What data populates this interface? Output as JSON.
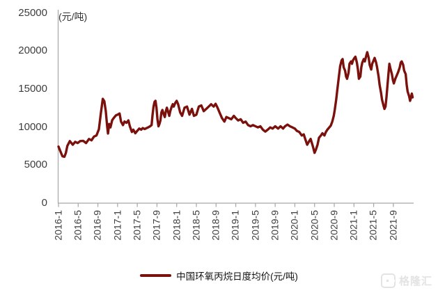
{
  "chart": {
    "unit_label": "(元/吨)"
  },
  "legend": {
    "label": "中国环氧丙烷日度均价(元/吨)"
  },
  "watermark": {
    "brand": "格隆汇"
  },
  "colors": {
    "series": "#7B110D",
    "axis": "#A6A6A6",
    "tick_text": "#3d3d3d"
  },
  "chart_data": {
    "type": "line",
    "title": "",
    "ylabel": "(元/吨)",
    "ylim": [
      0,
      25000
    ],
    "grid": false,
    "legend_position": "bottom",
    "y_tick_labels": [
      "25000",
      "20000",
      "15000",
      "10000",
      "5000",
      "0"
    ],
    "y_tick_values": [
      25000,
      20000,
      15000,
      10000,
      5000,
      0
    ],
    "x_tick_labels": [
      "2016-1",
      "2016-5",
      "2016-9",
      "2017-1",
      "2017-5",
      "2017-9",
      "2018-1",
      "2018-5",
      "2018-9",
      "2019-1",
      "2019-5",
      "2019-9",
      "2020-1",
      "2020-5",
      "2020-9",
      "2021-1",
      "2021-5",
      "2021-9"
    ],
    "x_unit": "months since 2016-01 (0 = 2016-01)",
    "series": [
      {
        "name": "中国环氧丙烷日度均价(元/吨)",
        "color": "#7B110D",
        "points": [
          [
            0,
            7430
          ],
          [
            0.4,
            6800
          ],
          [
            0.8,
            6160
          ],
          [
            1.2,
            6100
          ],
          [
            1.5,
            6600
          ],
          [
            1.8,
            7520
          ],
          [
            2.3,
            8150
          ],
          [
            2.9,
            7680
          ],
          [
            3.4,
            8050
          ],
          [
            3.9,
            7900
          ],
          [
            4.4,
            8150
          ],
          [
            5,
            8190
          ],
          [
            5.6,
            7900
          ],
          [
            6.2,
            8440
          ],
          [
            6.7,
            8250
          ],
          [
            7.2,
            8740
          ],
          [
            7.7,
            8890
          ],
          [
            8.2,
            9700
          ],
          [
            8.6,
            11780
          ],
          [
            9,
            13700
          ],
          [
            9.3,
            13400
          ],
          [
            9.6,
            12100
          ],
          [
            9.9,
            10000
          ],
          [
            10.05,
            9150
          ],
          [
            10.3,
            10400
          ],
          [
            10.55,
            9950
          ],
          [
            10.9,
            10900
          ],
          [
            11.3,
            11250
          ],
          [
            11.7,
            11550
          ],
          [
            12,
            11630
          ],
          [
            12.4,
            11780
          ],
          [
            12.7,
            10720
          ],
          [
            13.1,
            10260
          ],
          [
            13.4,
            10720
          ],
          [
            13.8,
            10560
          ],
          [
            14.2,
            10870
          ],
          [
            14.5,
            10100
          ],
          [
            14.9,
            9350
          ],
          [
            15.2,
            9650
          ],
          [
            15.6,
            9190
          ],
          [
            16,
            9500
          ],
          [
            16.4,
            9800
          ],
          [
            16.8,
            9650
          ],
          [
            17.1,
            9860
          ],
          [
            17.5,
            9740
          ],
          [
            17.9,
            9860
          ],
          [
            18.2,
            9950
          ],
          [
            18.6,
            10100
          ],
          [
            18.9,
            10260
          ],
          [
            19.1,
            11630
          ],
          [
            19.3,
            12690
          ],
          [
            19.5,
            13300
          ],
          [
            19.7,
            13450
          ],
          [
            19.9,
            12540
          ],
          [
            20.1,
            11020
          ],
          [
            20.3,
            10100
          ],
          [
            20.5,
            10410
          ],
          [
            20.7,
            10870
          ],
          [
            20.9,
            11930
          ],
          [
            21.1,
            12240
          ],
          [
            21.4,
            11630
          ],
          [
            21.6,
            11320
          ],
          [
            21.8,
            12080
          ],
          [
            22,
            12540
          ],
          [
            22.3,
            11930
          ],
          [
            22.5,
            11470
          ],
          [
            22.7,
            12080
          ],
          [
            23,
            12690
          ],
          [
            23.2,
            13000
          ],
          [
            23.4,
            12690
          ],
          [
            23.7,
            13150
          ],
          [
            24,
            13450
          ],
          [
            24.3,
            13000
          ],
          [
            24.7,
            11930
          ],
          [
            25.1,
            11470
          ],
          [
            25.6,
            12540
          ],
          [
            26.1,
            12690
          ],
          [
            26.6,
            11630
          ],
          [
            27.1,
            12390
          ],
          [
            27.5,
            11470
          ],
          [
            28,
            11630
          ],
          [
            28.5,
            12690
          ],
          [
            29,
            12840
          ],
          [
            29.5,
            12080
          ],
          [
            30,
            12390
          ],
          [
            30.5,
            12690
          ],
          [
            31,
            13000
          ],
          [
            31.5,
            12690
          ],
          [
            31.9,
            13050
          ],
          [
            32.3,
            12540
          ],
          [
            32.7,
            11930
          ],
          [
            33.2,
            11170
          ],
          [
            33.7,
            10720
          ],
          [
            34.1,
            11320
          ],
          [
            34.6,
            11170
          ],
          [
            35.1,
            11020
          ],
          [
            35.6,
            11470
          ],
          [
            36,
            11170
          ],
          [
            36.5,
            10870
          ],
          [
            37,
            11020
          ],
          [
            37.5,
            10560
          ],
          [
            38,
            10720
          ],
          [
            38.5,
            10260
          ],
          [
            39,
            10100
          ],
          [
            39.5,
            10260
          ],
          [
            40,
            10100
          ],
          [
            40.5,
            9950
          ],
          [
            41,
            10100
          ],
          [
            41.5,
            9650
          ],
          [
            42,
            9410
          ],
          [
            42.5,
            9650
          ],
          [
            43,
            9950
          ],
          [
            43.5,
            9800
          ],
          [
            44,
            10100
          ],
          [
            44.6,
            9800
          ],
          [
            45.1,
            10100
          ],
          [
            45.6,
            9800
          ],
          [
            46,
            10100
          ],
          [
            46.5,
            10320
          ],
          [
            47,
            10100
          ],
          [
            47.5,
            9950
          ],
          [
            48,
            9800
          ],
          [
            48.4,
            9500
          ],
          [
            48.9,
            9350
          ],
          [
            49.4,
            8890
          ],
          [
            49.8,
            9040
          ],
          [
            50.1,
            8440
          ],
          [
            50.5,
            7680
          ],
          [
            50.9,
            8130
          ],
          [
            51.2,
            8440
          ],
          [
            51.7,
            7370
          ],
          [
            52,
            6610
          ],
          [
            52.3,
            7070
          ],
          [
            52.6,
            7680
          ],
          [
            52.9,
            8590
          ],
          [
            53.3,
            8890
          ],
          [
            53.6,
            9190
          ],
          [
            54,
            8890
          ],
          [
            54.3,
            9350
          ],
          [
            54.6,
            9650
          ],
          [
            55,
            9950
          ],
          [
            55.3,
            10200
          ],
          [
            55.6,
            10720
          ],
          [
            55.9,
            11470
          ],
          [
            56.1,
            12240
          ],
          [
            56.4,
            13600
          ],
          [
            56.6,
            14820
          ],
          [
            56.8,
            15890
          ],
          [
            57,
            16950
          ],
          [
            57.2,
            18010
          ],
          [
            57.5,
            18770
          ],
          [
            57.7,
            18930
          ],
          [
            57.9,
            17860
          ],
          [
            58.2,
            17400
          ],
          [
            58.4,
            16640
          ],
          [
            58.6,
            16340
          ],
          [
            58.9,
            17100
          ],
          [
            59.1,
            18310
          ],
          [
            59.4,
            18620
          ],
          [
            59.6,
            18310
          ],
          [
            59.8,
            18770
          ],
          [
            60.1,
            19080
          ],
          [
            60.3,
            19230
          ],
          [
            60.6,
            18470
          ],
          [
            60.8,
            17560
          ],
          [
            61,
            16340
          ],
          [
            61.3,
            16640
          ],
          [
            61.5,
            17860
          ],
          [
            61.7,
            18470
          ],
          [
            62,
            18930
          ],
          [
            62.2,
            18620
          ],
          [
            62.5,
            19380
          ],
          [
            62.7,
            19840
          ],
          [
            63,
            19080
          ],
          [
            63.2,
            18160
          ],
          [
            63.5,
            17560
          ],
          [
            63.7,
            18310
          ],
          [
            64,
            18770
          ],
          [
            64.2,
            19080
          ],
          [
            64.5,
            18470
          ],
          [
            64.7,
            17860
          ],
          [
            65,
            16640
          ],
          [
            65.2,
            15570
          ],
          [
            65.5,
            14510
          ],
          [
            65.7,
            13600
          ],
          [
            66,
            12840
          ],
          [
            66.2,
            12390
          ],
          [
            66.4,
            12690
          ],
          [
            66.6,
            13910
          ],
          [
            66.8,
            15430
          ],
          [
            67,
            16950
          ],
          [
            67.2,
            18310
          ],
          [
            67.4,
            17710
          ],
          [
            67.7,
            16950
          ],
          [
            67.9,
            16190
          ],
          [
            68.1,
            15730
          ],
          [
            68.4,
            16340
          ],
          [
            68.6,
            16640
          ],
          [
            68.8,
            16950
          ],
          [
            69,
            17250
          ],
          [
            69.3,
            17860
          ],
          [
            69.5,
            18470
          ],
          [
            69.7,
            18620
          ],
          [
            70,
            18160
          ],
          [
            70.2,
            17400
          ],
          [
            70.5,
            16950
          ],
          [
            70.7,
            15570
          ],
          [
            70.9,
            14660
          ],
          [
            71.2,
            14060
          ],
          [
            71.4,
            13450
          ],
          [
            71.6,
            13900
          ],
          [
            71.75,
            14400
          ],
          [
            71.9,
            13900
          ]
        ]
      }
    ]
  }
}
